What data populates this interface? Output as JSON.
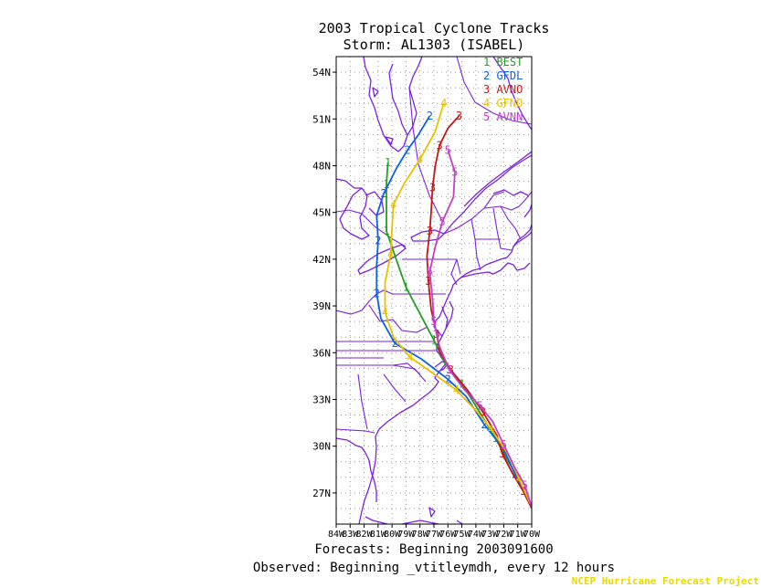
{
  "title": "2003 Tropical Cyclone Tracks",
  "subtitle": "Storm: AL1303 (ISABEL)",
  "footer_forecasts": "Forecasts: Beginning 2003091600",
  "footer_observed": "Observed: Beginning _vtitleymdh, every 12 hours",
  "credit": "NCEP Hurricane Forecast Project",
  "axes": {
    "lat_labels": [
      "54N",
      "51N",
      "48N",
      "45N",
      "42N",
      "39N",
      "36N",
      "33N",
      "30N",
      "27N"
    ],
    "lat_values": [
      54,
      51,
      48,
      45,
      42,
      39,
      36,
      33,
      30,
      27
    ],
    "lon_labels": [
      "84W",
      "83W",
      "82W",
      "81W",
      "80W",
      "79W",
      "78W",
      "77W",
      "76W",
      "75W",
      "74W",
      "73W",
      "72W",
      "71W",
      "70W"
    ],
    "lon_values": [
      84,
      83,
      82,
      81,
      80,
      79,
      78,
      77,
      76,
      75,
      74,
      73,
      72,
      71,
      70
    ],
    "lat_range": [
      25,
      55
    ],
    "lon_range": [
      84,
      70
    ],
    "grid": true
  },
  "colors": {
    "map_lines": "#7a22dc",
    "grid": "#999999",
    "text": "#000000",
    "credit": "#e8d800",
    "BEST": "#22a022",
    "GFDL": "#1060e0",
    "AVNO": "#c01818",
    "GFNO": "#e8c000",
    "AVNN": "#c040c8"
  },
  "chart_data": {
    "type": "map",
    "legend": [
      {
        "num": "1",
        "name": "BEST"
      },
      {
        "num": "2",
        "name": "GFDL"
      },
      {
        "num": "3",
        "name": "AVNO"
      },
      {
        "num": "4",
        "name": "GFNO"
      },
      {
        "num": "5",
        "name": "AVNN"
      }
    ],
    "tracks": [
      {
        "name": "BEST",
        "num": "1",
        "points": [
          [
            70.2,
            26.5
          ],
          [
            71.0,
            28.0
          ],
          [
            71.8,
            29.2
          ],
          [
            72.6,
            30.5
          ],
          [
            73.6,
            32.0
          ],
          [
            75.0,
            34.0
          ],
          [
            76.2,
            35.3
          ],
          [
            77.0,
            36.8
          ],
          [
            78.0,
            38.5
          ],
          [
            79.0,
            40.2
          ],
          [
            79.7,
            42.0
          ],
          [
            80.4,
            43.8
          ],
          [
            80.4,
            45.2
          ],
          [
            80.4,
            46.8
          ],
          [
            80.3,
            48.2
          ]
        ]
      },
      {
        "name": "GFDL",
        "num": "2",
        "points": [
          [
            70.3,
            26.6
          ],
          [
            71.2,
            28.2
          ],
          [
            72.0,
            29.8
          ],
          [
            73.4,
            31.4
          ],
          [
            74.7,
            33.2
          ],
          [
            76.0,
            34.3
          ],
          [
            77.9,
            35.6
          ],
          [
            79.8,
            36.6
          ],
          [
            80.8,
            38.2
          ],
          [
            81.1,
            39.8
          ],
          [
            81.1,
            41.6
          ],
          [
            81.0,
            43.2
          ],
          [
            81.1,
            44.8
          ],
          [
            80.6,
            46.2
          ],
          [
            79.7,
            47.8
          ],
          [
            78.9,
            49.0
          ],
          [
            78.1,
            50.0
          ],
          [
            77.3,
            51.2
          ]
        ]
      },
      {
        "name": "AVNO",
        "num": "3",
        "points": [
          [
            70.0,
            26.0
          ],
          [
            70.6,
            27.1
          ],
          [
            71.4,
            28.3
          ],
          [
            72.1,
            29.5
          ],
          [
            72.5,
            30.7
          ],
          [
            73.5,
            32.2
          ],
          [
            74.6,
            33.6
          ],
          [
            75.8,
            34.9
          ],
          [
            76.6,
            36.1
          ],
          [
            76.8,
            37.2
          ],
          [
            77.2,
            38.8
          ],
          [
            77.4,
            40.6
          ],
          [
            77.5,
            42.2
          ],
          [
            77.3,
            43.8
          ],
          [
            77.2,
            45.0
          ],
          [
            77.1,
            46.6
          ],
          [
            76.9,
            48.0
          ],
          [
            76.6,
            49.3
          ],
          [
            76.0,
            50.4
          ],
          [
            75.2,
            51.2
          ]
        ]
      },
      {
        "name": "GFNO",
        "num": "4",
        "points": [
          [
            70.1,
            26.3
          ],
          [
            70.9,
            27.9
          ],
          [
            71.7,
            29.5
          ],
          [
            72.9,
            31.1
          ],
          [
            73.9,
            32.2
          ],
          [
            75.4,
            33.6
          ],
          [
            77.1,
            34.7
          ],
          [
            78.7,
            35.7
          ],
          [
            79.9,
            37.0
          ],
          [
            80.5,
            38.6
          ],
          [
            80.5,
            40.5
          ],
          [
            80.1,
            42.3
          ],
          [
            80.0,
            44.0
          ],
          [
            79.9,
            45.5
          ],
          [
            79.1,
            46.9
          ],
          [
            78.0,
            48.4
          ],
          [
            76.9,
            50.2
          ],
          [
            76.3,
            52.0
          ]
        ]
      },
      {
        "name": "AVNN",
        "num": "5",
        "points": [
          [
            70.0,
            26.1
          ],
          [
            70.5,
            27.5
          ],
          [
            71.2,
            28.6
          ],
          [
            72.0,
            30.1
          ],
          [
            72.8,
            31.6
          ],
          [
            73.7,
            32.6
          ],
          [
            74.8,
            33.6
          ],
          [
            75.9,
            34.9
          ],
          [
            76.6,
            36.4
          ],
          [
            77.0,
            38.0
          ],
          [
            77.1,
            39.4
          ],
          [
            77.3,
            41.2
          ],
          [
            76.9,
            42.8
          ],
          [
            76.4,
            44.4
          ],
          [
            75.6,
            46.0
          ],
          [
            75.5,
            47.6
          ],
          [
            76.0,
            49.0
          ]
        ]
      }
    ]
  }
}
